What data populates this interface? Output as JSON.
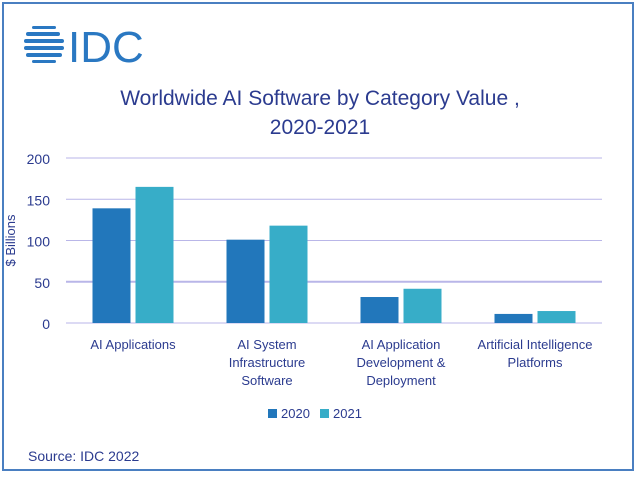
{
  "logo": {
    "text": "IDC",
    "color": "#2a78c2"
  },
  "source": "Source: IDC 2022",
  "chart_data": {
    "type": "bar",
    "title_lines": [
      "Worldwide AI Software by Category Value ,",
      "2020-2021"
    ],
    "ylabel": "$ Billions",
    "xlabel": "",
    "ylim": [
      0,
      200
    ],
    "yticks": [
      0,
      50,
      100,
      150,
      200
    ],
    "grid": true,
    "legend_placement": "bottom",
    "categories": [
      [
        "AI Applications"
      ],
      [
        "AI System",
        "Infrastructure",
        "Software"
      ],
      [
        "AI Application",
        "Development &",
        "Deployment"
      ],
      [
        "Artificial Intelligence",
        "Platforms"
      ]
    ],
    "series": [
      {
        "name": "2020",
        "color": "#2277bb",
        "values": [
          139,
          101,
          31.5,
          11
        ]
      },
      {
        "name": "2021",
        "color": "#37adc8",
        "values": [
          165,
          118,
          41.5,
          14.5
        ]
      }
    ]
  }
}
